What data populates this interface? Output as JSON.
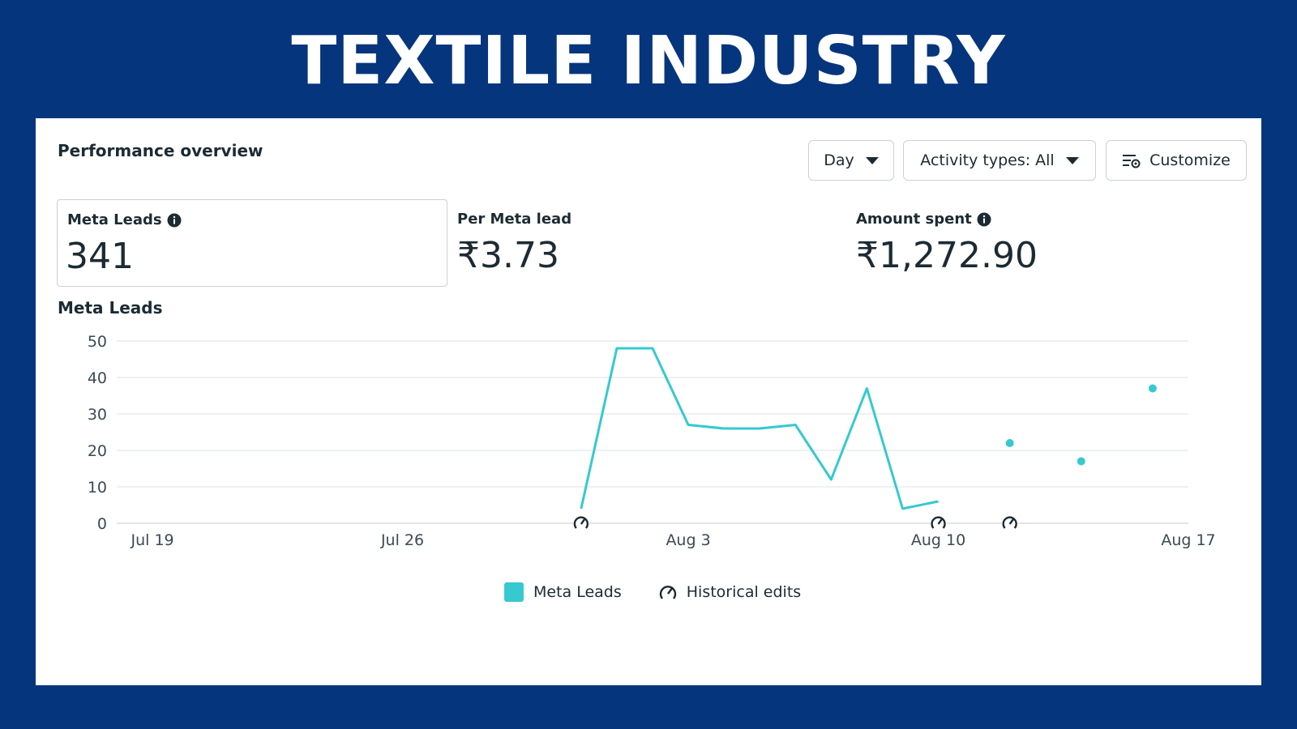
{
  "banner": {
    "title": "TEXTILE INDUSTRY"
  },
  "panel": {
    "title": "Performance overview",
    "controls": {
      "day_label": "Day",
      "activity_label": "Activity types: All",
      "customize_label": "Customize"
    },
    "metrics": [
      {
        "label": "Meta Leads",
        "value": "341",
        "info": true
      },
      {
        "label": "Per Meta lead",
        "value": "₹3.73",
        "info": false
      },
      {
        "label": "Amount spent",
        "value": "₹1,272.90",
        "info": true
      }
    ],
    "chart_title": "Meta Leads"
  },
  "legend": {
    "series_label": "Meta Leads",
    "edits_label": "Historical edits"
  },
  "colors": {
    "background": "#05357d",
    "series": "#36c9cf",
    "text": "#1c2b33",
    "grid": "#e4e6eb"
  },
  "chart_data": {
    "type": "line",
    "title": "Meta Leads",
    "x_start": "2024-07-18",
    "x_end": "2024-08-17",
    "x_tick_labels": [
      "Jul 19",
      "Jul 26",
      "Aug 3",
      "Aug 10",
      "Aug 17"
    ],
    "x_tick_dates": [
      "2024-07-19",
      "2024-07-26",
      "2024-08-03",
      "2024-08-10",
      "2024-08-17"
    ],
    "ylim": [
      0,
      50
    ],
    "y_ticks": [
      0,
      10,
      20,
      30,
      40,
      50
    ],
    "grid": true,
    "series": [
      {
        "name": "Meta Leads",
        "line_points": [
          {
            "date": "2024-07-31",
            "value": 4
          },
          {
            "date": "2024-08-01",
            "value": 48
          },
          {
            "date": "2024-08-02",
            "value": 48
          },
          {
            "date": "2024-08-03",
            "value": 27
          },
          {
            "date": "2024-08-04",
            "value": 26
          },
          {
            "date": "2024-08-05",
            "value": 26
          },
          {
            "date": "2024-08-06",
            "value": 27
          },
          {
            "date": "2024-08-07",
            "value": 12
          },
          {
            "date": "2024-08-08",
            "value": 37
          },
          {
            "date": "2024-08-09",
            "value": 4
          },
          {
            "date": "2024-08-10",
            "value": 6
          }
        ],
        "isolated_points": [
          {
            "date": "2024-08-12",
            "value": 22
          },
          {
            "date": "2024-08-14",
            "value": 17
          },
          {
            "date": "2024-08-16",
            "value": 37
          }
        ]
      }
    ],
    "historical_edit_dates": [
      "2024-07-31",
      "2024-08-10",
      "2024-08-12"
    ],
    "legend": [
      "Meta Leads",
      "Historical edits"
    ],
    "legend_position": "bottom"
  }
}
